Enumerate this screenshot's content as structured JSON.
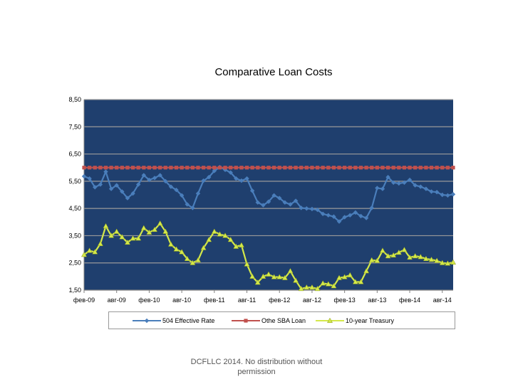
{
  "chart_data": {
    "type": "line",
    "title": "Comparative Loan Costs",
    "xlabel": "",
    "ylabel": "",
    "ylim": [
      1.5,
      8.5
    ],
    "yticks": [
      "8,50",
      "7,50",
      "6,50",
      "5,50",
      "4,50",
      "3,50",
      "2,50",
      "1,50"
    ],
    "ytick_values": [
      8.5,
      7.5,
      6.5,
      5.5,
      4.5,
      3.5,
      2.5,
      1.5
    ],
    "xticks": [
      "фев-09",
      "авг-09",
      "фев-10",
      "авг-10",
      "фев-11",
      "авг-11",
      "фев-12",
      "авг-12",
      "фев-13",
      "авг-13",
      "фев-14",
      "авг-14"
    ],
    "grid": true,
    "legend_position": "bottom",
    "background": "#1f3f6e",
    "series": [
      {
        "name": "504 Effective Rate",
        "color": "#4a7ebb",
        "marker": "diamond",
        "values": [
          5.68,
          5.6,
          5.28,
          5.38,
          5.85,
          5.22,
          5.35,
          5.12,
          4.88,
          5.05,
          5.38,
          5.72,
          5.55,
          5.62,
          5.72,
          5.5,
          5.3,
          5.18,
          4.98,
          4.65,
          4.52,
          5.05,
          5.52,
          5.65,
          5.88,
          6.02,
          5.92,
          5.82,
          5.6,
          5.52,
          5.6,
          5.15,
          4.72,
          4.62,
          4.75,
          4.98,
          4.88,
          4.72,
          4.65,
          4.78,
          4.52,
          4.5,
          4.48,
          4.45,
          4.3,
          4.25,
          4.2,
          4.02,
          4.18,
          4.25,
          4.35,
          4.22,
          4.15,
          4.52,
          5.25,
          5.22,
          5.65,
          5.45,
          5.42,
          5.45,
          5.55,
          5.35,
          5.3,
          5.22,
          5.12,
          5.1,
          5.0,
          4.98,
          5.02
        ]
      },
      {
        "name": "Othe SBA Loan",
        "color": "#c0504d",
        "marker": "square",
        "values": [
          6.0,
          6.0,
          6.0,
          6.0,
          6.0,
          6.0,
          6.0,
          6.0,
          6.0,
          6.0,
          6.0,
          6.0,
          6.0,
          6.0,
          6.0,
          6.0,
          6.0,
          6.0,
          6.0,
          6.0,
          6.0,
          6.0,
          6.0,
          6.0,
          6.0,
          6.0,
          6.0,
          6.0,
          6.0,
          6.0,
          6.0,
          6.0,
          6.0,
          6.0,
          6.0,
          6.0,
          6.0,
          6.0,
          6.0,
          6.0,
          6.0,
          6.0,
          6.0,
          6.0,
          6.0,
          6.0,
          6.0,
          6.0,
          6.0,
          6.0,
          6.0,
          6.0,
          6.0,
          6.0,
          6.0,
          6.0,
          6.0,
          6.0,
          6.0,
          6.0,
          6.0,
          6.0,
          6.0,
          6.0,
          6.0,
          6.0,
          6.0,
          6.0,
          6.0
        ]
      },
      {
        "name": "10-year Treasury",
        "color": "#d4e84a",
        "marker": "triangle",
        "values": [
          2.8,
          2.95,
          2.9,
          3.2,
          3.85,
          3.5,
          3.65,
          3.45,
          3.25,
          3.4,
          3.4,
          3.78,
          3.62,
          3.72,
          3.95,
          3.65,
          3.18,
          3.0,
          2.9,
          2.65,
          2.5,
          2.6,
          3.05,
          3.35,
          3.65,
          3.55,
          3.5,
          3.35,
          3.1,
          3.15,
          2.45,
          2.0,
          1.78,
          2.0,
          2.08,
          1.98,
          1.98,
          1.95,
          2.2,
          1.85,
          1.55,
          1.6,
          1.6,
          1.55,
          1.75,
          1.72,
          1.65,
          1.95,
          1.98,
          2.05,
          1.8,
          1.8,
          2.2,
          2.6,
          2.58,
          2.95,
          2.75,
          2.78,
          2.88,
          2.98,
          2.7,
          2.75,
          2.72,
          2.65,
          2.62,
          2.58,
          2.5,
          2.48,
          2.52
        ]
      }
    ]
  },
  "footer": {
    "line1": "DCFLLC 2014.  No distribution without",
    "line2": "permission"
  }
}
